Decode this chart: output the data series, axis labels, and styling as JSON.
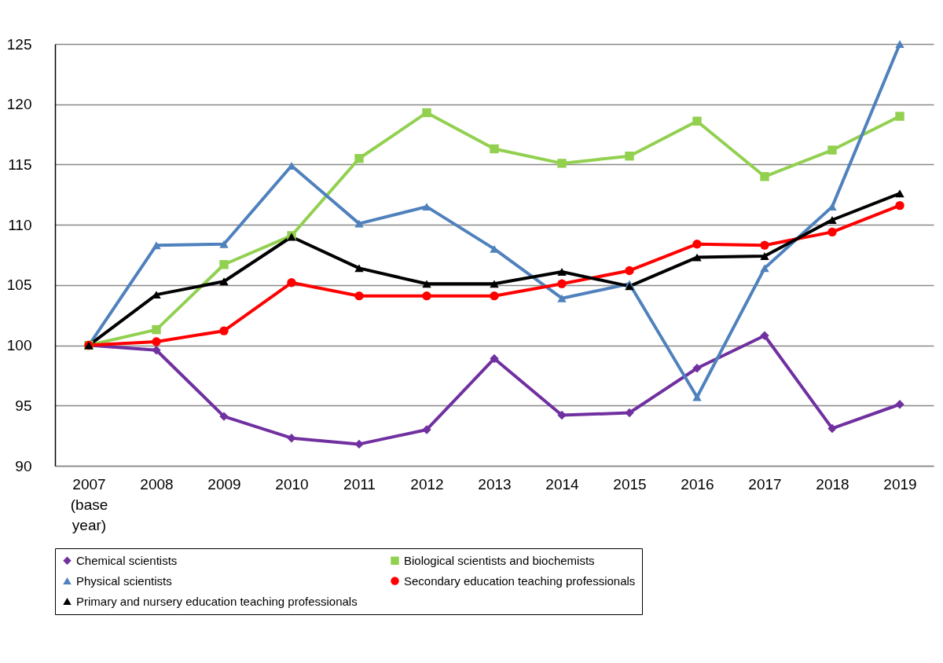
{
  "chart_data": {
    "type": "line",
    "categories": [
      "2007 (base year)",
      "2008",
      "2009",
      "2010",
      "2011",
      "2012",
      "2013",
      "2014",
      "2015",
      "2016",
      "2017",
      "2018",
      "2019"
    ],
    "ylim": [
      90,
      125
    ],
    "yticks": [
      90,
      95,
      100,
      105,
      110,
      115,
      120,
      125
    ],
    "grid": "y",
    "legend": "bottom",
    "line_style": "solid",
    "series": [
      {
        "name": "Chemical scientists",
        "color": "#7030a0",
        "marker": "diamond",
        "values": [
          100,
          99.6,
          94.1,
          92.3,
          91.8,
          93.0,
          98.9,
          94.2,
          94.4,
          98.1,
          100.8,
          93.1,
          95.1
        ]
      },
      {
        "name": "Biological scientists and biochemists",
        "color": "#92d050",
        "marker": "square",
        "values": [
          100,
          101.3,
          106.7,
          109.1,
          115.5,
          119.3,
          116.3,
          115.1,
          115.7,
          118.6,
          114.0,
          116.2,
          119.0
        ]
      },
      {
        "name": "Physical scientists",
        "color": "#4f81bd",
        "marker": "triangle",
        "values": [
          100,
          108.3,
          108.4,
          114.9,
          110.1,
          111.5,
          108.0,
          103.9,
          105.1,
          95.7,
          106.4,
          111.5,
          125.0
        ]
      },
      {
        "name": "Secondary education teaching professionals",
        "color": "#ff0000",
        "marker": "circle",
        "values": [
          100,
          100.3,
          101.2,
          105.2,
          104.1,
          104.1,
          104.1,
          105.1,
          106.2,
          108.4,
          108.3,
          109.4,
          111.6
        ]
      },
      {
        "name": "Primary and nursery education teaching professionals",
        "color": "#000000",
        "marker": "triangle",
        "values": [
          100,
          104.2,
          105.3,
          109.0,
          106.4,
          105.1,
          105.1,
          106.1,
          104.9,
          107.3,
          107.4,
          110.4,
          112.6
        ]
      }
    ]
  }
}
